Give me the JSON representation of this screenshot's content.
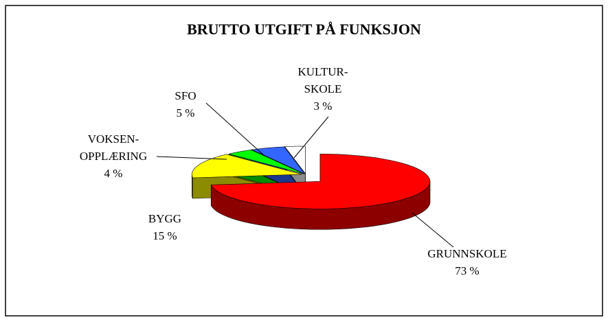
{
  "chart_data": {
    "type": "pie3d",
    "title": "BRUTTO UTGIFT PÅ FUNKSJON",
    "categories": [
      "GRUNNSKOLE",
      "BYGG",
      "VOKSEN-\nOPPLÆRING",
      "SFO",
      "KULTUR-\nSKOLE"
    ],
    "values": [
      73,
      15,
      4,
      5,
      3
    ],
    "value_labels": [
      "73 %",
      "15 %",
      "4 %",
      "5 %",
      "3 %"
    ],
    "colors": [
      "#ff0000",
      "#ffff00",
      "#00ff00",
      "#3366ff",
      "#ffffff"
    ]
  }
}
